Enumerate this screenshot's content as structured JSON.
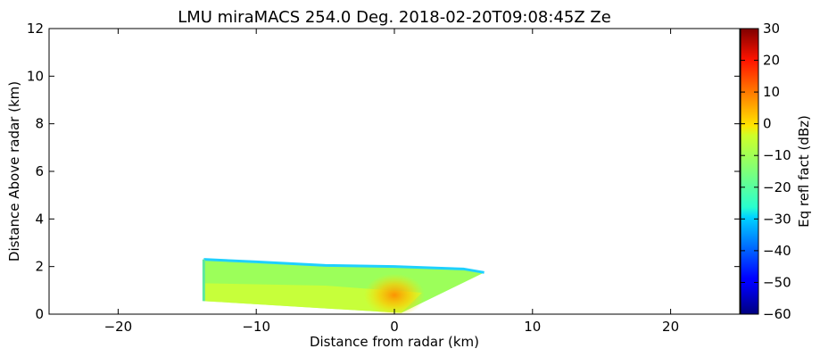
{
  "chart_data": {
    "type": "heatmap",
    "title": "LMU miraMACS 254.0 Deg. 2018-02-20T09:08:45Z  Ze",
    "xlabel": "Distance from radar (km)",
    "ylabel": "Distance Above radar  (km)",
    "xlim": [
      -25,
      25
    ],
    "ylim": [
      0,
      12
    ],
    "xticks": [
      -20,
      -10,
      0,
      10,
      20
    ],
    "yticks": [
      0,
      2,
      4,
      6,
      8,
      10,
      12
    ],
    "colorbar": {
      "label": "Eq refl fact (dBz)",
      "range": [
        -60,
        30
      ],
      "ticks": [
        30,
        20,
        10,
        0,
        -10,
        -20,
        -30,
        -40,
        -50,
        -60
      ],
      "colormap": "jet"
    },
    "echo_region": {
      "polygon_km": [
        [
          -13.8,
          0.55
        ],
        [
          -13.8,
          2.3
        ],
        [
          -10,
          2.2
        ],
        [
          -5,
          2.05
        ],
        [
          0,
          2.0
        ],
        [
          5,
          1.9
        ],
        [
          6.5,
          1.75
        ],
        [
          0.5,
          0.05
        ],
        [
          -13.8,
          0.55
        ]
      ],
      "typical_dbz": -15,
      "core": {
        "x_km": 0,
        "y_km": 0.8,
        "max_dbz": 8
      }
    }
  }
}
